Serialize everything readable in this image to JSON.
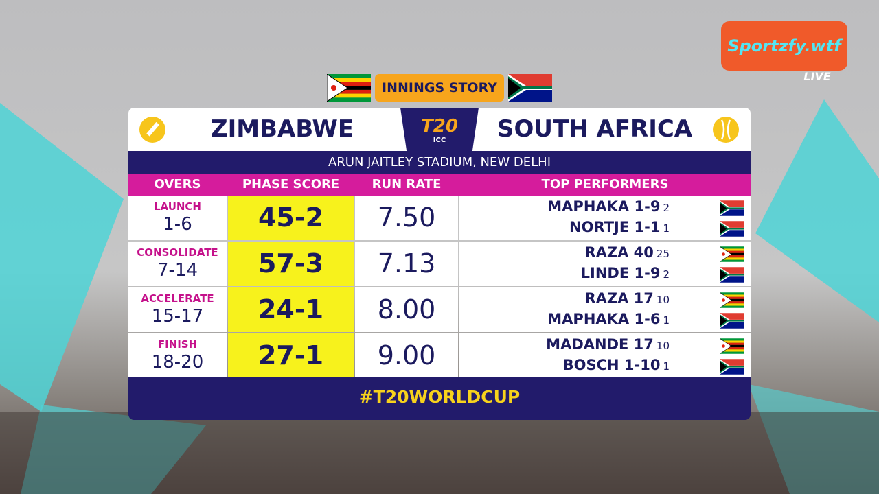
{
  "watermark": {
    "brand": "Sportzfy.wtf",
    "status": "LIVE"
  },
  "header": {
    "title": "INNINGS STORY",
    "team_left": "ZIMBABWE",
    "team_right": "SOUTH AFRICA",
    "logo": "T20",
    "logo_sub": "ICC"
  },
  "venue": "ARUN JAITLEY STADIUM, NEW DELHI",
  "columns": [
    "OVERS",
    "PHASE SCORE",
    "RUN RATE",
    "TOP PERFORMERS"
  ],
  "rows": [
    {
      "phase": "LAUNCH",
      "overs": "1-6",
      "score": "45-2",
      "run_rate": "7.50",
      "performers": [
        {
          "name": "MAPHAKA",
          "figures": "1-9",
          "extra": "2"
        },
        {
          "name": "NORTJE",
          "figures": "1-1",
          "extra": "1"
        }
      ]
    },
    {
      "phase": "CONSOLIDATE",
      "overs": "7-14",
      "score": "57-3",
      "run_rate": "7.13",
      "performers": [
        {
          "name": "RAZA",
          "figures": "40",
          "extra": "25"
        },
        {
          "name": "LINDE",
          "figures": "1-9",
          "extra": "2"
        }
      ]
    },
    {
      "phase": "ACCELERATE",
      "overs": "15-17",
      "score": "24-1",
      "run_rate": "8.00",
      "performers": [
        {
          "name": "RAZA",
          "figures": "17",
          "extra": "10"
        },
        {
          "name": "MAPHAKA",
          "figures": "1-6",
          "extra": "1"
        }
      ]
    },
    {
      "phase": "FINISH",
      "overs": "18-20",
      "score": "27-1",
      "run_rate": "9.00",
      "performers": [
        {
          "name": "MADANDE",
          "figures": "17",
          "extra": "10"
        },
        {
          "name": "BOSCH",
          "figures": "1-10",
          "extra": "1"
        }
      ]
    }
  ],
  "footer": "#T20WORLDCUP"
}
